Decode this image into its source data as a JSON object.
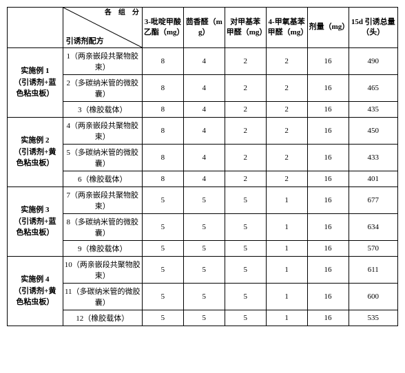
{
  "headers": {
    "diag_top": "各　组　分",
    "diag_bottom": "引诱剂配方",
    "c1": "3-吡啶甲酸乙酯（mg）",
    "c2": "茴香醛（mg）",
    "c3": "对甲基苯甲醛（mg）",
    "c4": "4-甲氧基苯甲醛（mg）",
    "c5": "剂量（mg）",
    "c6": "15d 引诱总量（头）"
  },
  "groups": [
    {
      "label": "实施例 1\n（引诱剂+蓝\n色粘虫板）",
      "rows": [
        {
          "formula": "1（两亲嵌段共聚物胶束）",
          "v": [
            8,
            4,
            2,
            2,
            16,
            490
          ]
        },
        {
          "formula": "2（多碳纳米管的微胶囊）",
          "v": [
            8,
            4,
            2,
            2,
            16,
            465
          ]
        },
        {
          "formula": "3（橡胶载体）",
          "v": [
            8,
            4,
            2,
            2,
            16,
            435
          ]
        }
      ]
    },
    {
      "label": "实施例 2\n（引诱剂+黄\n色粘虫板）",
      "rows": [
        {
          "formula": "4（两亲嵌段共聚物胶束）",
          "v": [
            8,
            4,
            2,
            2,
            16,
            450
          ]
        },
        {
          "formula": "5（多碳纳米管的微胶囊）",
          "v": [
            8,
            4,
            2,
            2,
            16,
            433
          ]
        },
        {
          "formula": "6（橡胶载体）",
          "v": [
            8,
            4,
            2,
            2,
            16,
            401
          ]
        }
      ]
    },
    {
      "label": "实施例 3\n（引诱剂+蓝\n色粘虫板）",
      "rows": [
        {
          "formula": "7（两亲嵌段共聚物胶束）",
          "v": [
            5,
            5,
            5,
            1,
            16,
            677
          ]
        },
        {
          "formula": "8（多碳纳米管的微胶囊）",
          "v": [
            5,
            5,
            5,
            1,
            16,
            634
          ]
        },
        {
          "formula": "9（橡胶载体）",
          "v": [
            5,
            5,
            5,
            1,
            16,
            570
          ]
        }
      ]
    },
    {
      "label": "实施例 4\n（引诱剂+黄\n色粘虫板）",
      "rows": [
        {
          "formula": "10（两亲嵌段共聚物胶束）",
          "v": [
            5,
            5,
            5,
            1,
            16,
            611
          ]
        },
        {
          "formula": "11（多碳纳米管的微胶囊）",
          "v": [
            5,
            5,
            5,
            1,
            16,
            600
          ]
        },
        {
          "formula": "12（橡胶载体）",
          "v": [
            5,
            5,
            5,
            1,
            16,
            535
          ]
        }
      ]
    }
  ]
}
